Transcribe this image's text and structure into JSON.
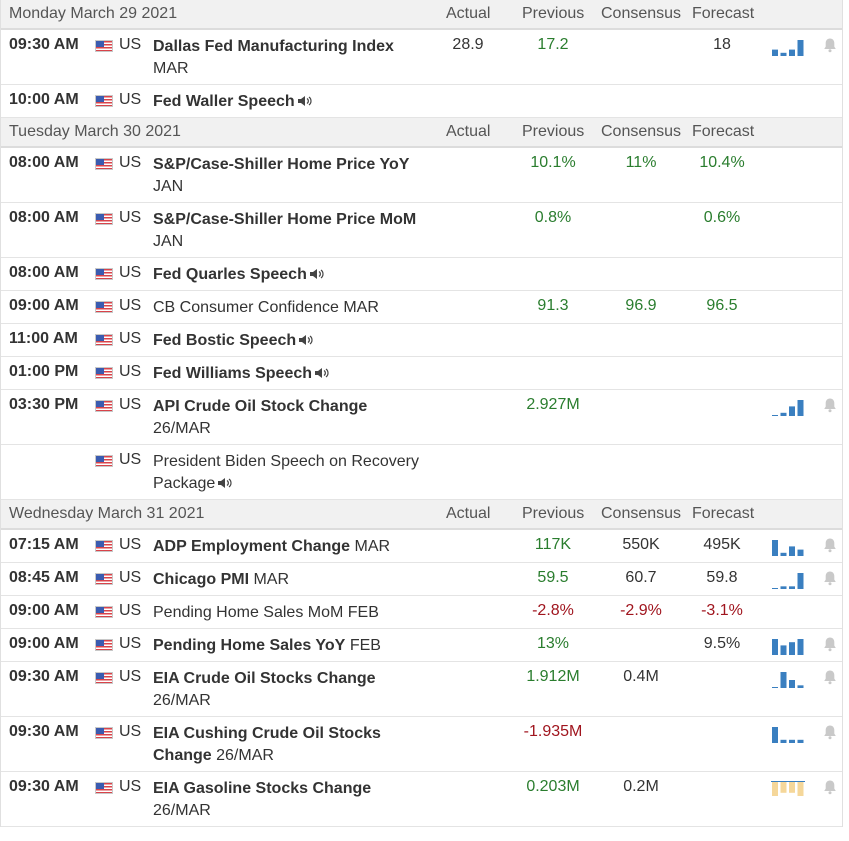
{
  "columns": {
    "actual": "Actual",
    "previous": "Previous",
    "consensus": "Consensus",
    "forecast": "Forecast"
  },
  "days": [
    {
      "title": "Monday March 29 2021",
      "events": [
        {
          "time": "09:30 AM",
          "country": "US",
          "name": "Dallas Fed Manufacturing Index",
          "bold": true,
          "period": "MAR",
          "actual": "28.9",
          "previous": "17.2",
          "previous_color": "green",
          "consensus": "",
          "forecast": "18",
          "forecast_color": "",
          "chart": {
            "values": [
              2,
              1,
              2,
              5
            ],
            "color": "#3a7fc0"
          },
          "bell": true,
          "speech": false
        },
        {
          "time": "10:00 AM",
          "country": "US",
          "name": "Fed Waller Speech",
          "bold": true,
          "period": "",
          "actual": "",
          "previous": "",
          "consensus": "",
          "forecast": "",
          "chart": null,
          "bell": false,
          "speech": true
        }
      ]
    },
    {
      "title": "Tuesday March 30 2021",
      "events": [
        {
          "time": "08:00 AM",
          "country": "US",
          "name": "S&P/Case-Shiller Home Price YoY",
          "bold": true,
          "period": "JAN",
          "actual": "",
          "previous": "10.1%",
          "previous_color": "green",
          "consensus": "11%",
          "consensus_color": "green",
          "forecast": "10.4%",
          "forecast_color": "green",
          "chart": null,
          "bell": false,
          "speech": false
        },
        {
          "time": "08:00 AM",
          "country": "US",
          "name": "S&P/Case-Shiller Home Price MoM",
          "bold": true,
          "period": "JAN",
          "actual": "",
          "previous": "0.8%",
          "previous_color": "green",
          "consensus": "",
          "forecast": "0.6%",
          "forecast_color": "green",
          "chart": null,
          "bell": false,
          "speech": false
        },
        {
          "time": "08:00 AM",
          "country": "US",
          "name": "Fed Quarles Speech",
          "bold": true,
          "period": "",
          "actual": "",
          "previous": "",
          "consensus": "",
          "forecast": "",
          "chart": null,
          "bell": false,
          "speech": true
        },
        {
          "time": "09:00 AM",
          "country": "US",
          "name": "CB Consumer Confidence MAR",
          "bold": false,
          "period": "",
          "actual": "",
          "previous": "91.3",
          "previous_color": "green",
          "consensus": "96.9",
          "consensus_color": "green",
          "forecast": "96.5",
          "forecast_color": "green",
          "chart": null,
          "bell": false,
          "speech": false
        },
        {
          "time": "11:00 AM",
          "country": "US",
          "name": "Fed Bostic Speech",
          "bold": true,
          "period": "",
          "actual": "",
          "previous": "",
          "consensus": "",
          "forecast": "",
          "chart": null,
          "bell": false,
          "speech": true
        },
        {
          "time": "01:00 PM",
          "country": "US",
          "name": "Fed Williams Speech",
          "bold": true,
          "period": "",
          "actual": "",
          "previous": "",
          "consensus": "",
          "forecast": "",
          "chart": null,
          "bell": false,
          "speech": true
        },
        {
          "time": "03:30 PM",
          "country": "US",
          "name": "API Crude Oil Stock Change",
          "bold": true,
          "period": "26/MAR",
          "actual": "",
          "previous": "2.927M",
          "previous_color": "green",
          "consensus": "",
          "forecast": "",
          "chart": {
            "values": [
              0,
              1,
              3,
              5
            ],
            "color": "#3a7fc0"
          },
          "bell": true,
          "speech": false
        },
        {
          "time": "",
          "country": "US",
          "name": "President Biden Speech on Recovery Package",
          "bold": false,
          "period": "",
          "actual": "",
          "previous": "",
          "consensus": "",
          "forecast": "",
          "chart": null,
          "bell": false,
          "speech": true
        }
      ]
    },
    {
      "title": "Wednesday March 31 2021",
      "events": [
        {
          "time": "07:15 AM",
          "country": "US",
          "name": "ADP Employment Change",
          "bold": true,
          "period_inline": "MAR",
          "period": "",
          "actual": "",
          "previous": "117K",
          "previous_color": "green",
          "consensus": "550K",
          "consensus_color": "",
          "forecast": "495K",
          "forecast_color": "",
          "chart": {
            "values": [
              5,
              1,
              3,
              2
            ],
            "color": "#3a7fc0"
          },
          "bell": true,
          "speech": false
        },
        {
          "time": "08:45 AM",
          "country": "US",
          "name": "Chicago PMI",
          "bold": true,
          "period_inline": "MAR",
          "period": "",
          "actual": "",
          "previous": "59.5",
          "previous_color": "green",
          "consensus": "60.7",
          "consensus_color": "",
          "forecast": "59.8",
          "forecast_color": "",
          "chart": {
            "values": [
              0,
              1,
              1,
              6
            ],
            "color": "#3a7fc0"
          },
          "bell": true,
          "speech": false
        },
        {
          "time": "09:00 AM",
          "country": "US",
          "name": "Pending Home Sales MoM FEB",
          "bold": false,
          "period": "",
          "actual": "",
          "previous": "-2.8%",
          "previous_color": "red",
          "consensus": "-2.9%",
          "consensus_color": "red",
          "forecast": "-3.1%",
          "forecast_color": "red",
          "chart": null,
          "bell": false,
          "speech": false
        },
        {
          "time": "09:00 AM",
          "country": "US",
          "name": "Pending Home Sales YoY",
          "bold": true,
          "period_inline": "FEB",
          "period": "",
          "actual": "",
          "previous": "13%",
          "previous_color": "green",
          "consensus": "",
          "forecast": "9.5%",
          "forecast_color": "",
          "chart": {
            "values": [
              5,
              3,
              4,
              5
            ],
            "color": "#3a7fc0"
          },
          "bell": true,
          "speech": false
        },
        {
          "time": "09:30 AM",
          "country": "US",
          "name": "EIA Crude Oil Stocks Change",
          "bold": true,
          "period": "26/MAR",
          "actual": "",
          "previous": "1.912M",
          "previous_color": "green",
          "consensus": "0.4M",
          "consensus_color": "",
          "forecast": "",
          "chart": {
            "values": [
              0,
              6,
              3,
              1
            ],
            "color": "#3a7fc0"
          },
          "bell": true,
          "speech": false
        },
        {
          "time": "09:30 AM",
          "country": "US",
          "name": "EIA Cushing Crude Oil Stocks Change",
          "bold": true,
          "period_inline": "26/MAR",
          "period": "",
          "actual": "",
          "previous": "-1.935M",
          "previous_color": "red",
          "consensus": "",
          "forecast": "",
          "chart": {
            "values": [
              5,
              1,
              1,
              1
            ],
            "color": "#3a7fc0"
          },
          "bell": true,
          "speech": false
        },
        {
          "time": "09:30 AM",
          "country": "US",
          "name": "EIA Gasoline Stocks Change",
          "bold": true,
          "period": "26/MAR",
          "actual": "",
          "previous": "0.203M",
          "previous_color": "green",
          "consensus": "0.2M",
          "consensus_color": "",
          "forecast": "",
          "chart": {
            "values": [
              5,
              4,
              4,
              5
            ],
            "color": "#f5d79a",
            "inverted": true
          },
          "bell": true,
          "speech": false
        }
      ]
    }
  ]
}
